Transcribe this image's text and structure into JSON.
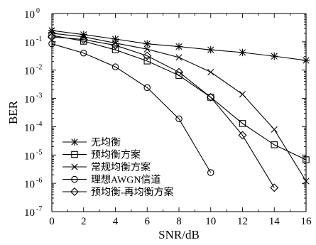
{
  "chart_data": {
    "type": "line",
    "xlabel": "SNR/dB",
    "ylabel": "BER",
    "y_scale": "log",
    "xlim": [
      0,
      16
    ],
    "ylim": [
      1e-07,
      1
    ],
    "x_ticks": [
      0,
      2,
      4,
      6,
      8,
      10,
      12,
      14,
      16
    ],
    "y_ticks": [
      {
        "value": 1,
        "base": "10",
        "exp": "0"
      },
      {
        "value": 0.1,
        "base": "10",
        "exp": "-1"
      },
      {
        "value": 0.01,
        "base": "10",
        "exp": "-2"
      },
      {
        "value": 0.001,
        "base": "10",
        "exp": "-3"
      },
      {
        "value": 0.0001,
        "base": "10",
        "exp": "-4"
      },
      {
        "value": 1e-05,
        "base": "10",
        "exp": "-5"
      },
      {
        "value": 1e-06,
        "base": "10",
        "exp": "-6"
      },
      {
        "value": 1e-07,
        "base": "10",
        "exp": "-7"
      }
    ],
    "legend_position": "bottom-left",
    "series": [
      {
        "name": "无均衡",
        "marker": "star",
        "x": [
          0,
          2,
          4,
          6,
          8,
          10,
          12,
          14,
          16
        ],
        "y": [
          0.25,
          0.18,
          0.125,
          0.085,
          0.068,
          0.052,
          0.042,
          0.031,
          0.022
        ]
      },
      {
        "name": "预均衡方案",
        "marker": "square",
        "x": [
          0,
          2,
          4,
          6,
          8,
          10,
          12,
          14,
          16
        ],
        "y": [
          0.17,
          0.105,
          0.052,
          0.021,
          0.0065,
          0.0011,
          0.00013,
          2.3e-05,
          6.8e-06
        ]
      },
      {
        "name": "常规均衡方案",
        "marker": "x",
        "x": [
          0,
          2,
          4,
          6,
          8,
          10,
          12,
          14,
          16
        ],
        "y": [
          0.2,
          0.15,
          0.09,
          0.055,
          0.028,
          0.0085,
          0.0014,
          8e-05,
          1.2e-06
        ]
      },
      {
        "name": "理想AWGN信道",
        "marker": "circle",
        "x": [
          0,
          2,
          4,
          6,
          8,
          10
        ],
        "y": [
          0.085,
          0.04,
          0.013,
          0.0024,
          0.00019,
          2.4e-06
        ]
      },
      {
        "name": "预均衡-再均衡方案",
        "marker": "diamond",
        "x": [
          0,
          2,
          4,
          6,
          8,
          10,
          12,
          14
        ],
        "y": [
          0.15,
          0.12,
          0.075,
          0.032,
          0.0085,
          0.0011,
          5e-05,
          7e-07
        ]
      }
    ]
  }
}
